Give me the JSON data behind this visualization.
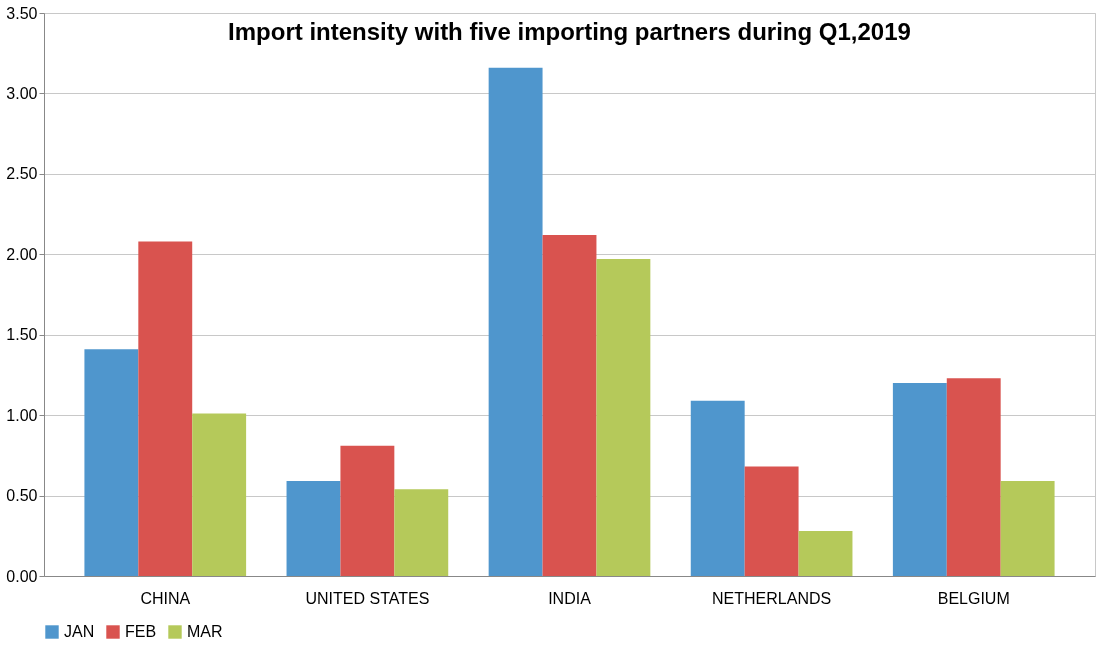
{
  "chart_data": {
    "type": "bar",
    "title": "Import intensity with five importing partners during Q1,2019",
    "categories": [
      "CHINA",
      "UNITED STATES",
      "INDIA",
      "NETHERLANDS",
      "BELGIUM"
    ],
    "series": [
      {
        "name": "JAN",
        "color": "#4f96cd",
        "values": [
          1.41,
          0.59,
          3.16,
          1.09,
          1.2
        ]
      },
      {
        "name": "FEB",
        "color": "#d9534f",
        "values": [
          2.08,
          0.81,
          2.12,
          0.68,
          1.23
        ]
      },
      {
        "name": "MAR",
        "color": "#b5c95a",
        "values": [
          1.01,
          0.54,
          1.97,
          0.28,
          0.59
        ]
      }
    ],
    "ylim": [
      0,
      3.5
    ],
    "yticks": [
      {
        "value": 0,
        "label": "0.00"
      },
      {
        "value": 0.5,
        "label": "0.50"
      },
      {
        "value": 1,
        "label": "1.00"
      },
      {
        "value": 1.5,
        "label": "1.50"
      },
      {
        "value": 2,
        "label": "2.00"
      },
      {
        "value": 2.5,
        "label": "2.50"
      },
      {
        "value": 3,
        "label": "3.00"
      },
      {
        "value": 3.5,
        "label": "3.50"
      }
    ],
    "grid": "y",
    "legend": "bottom"
  }
}
